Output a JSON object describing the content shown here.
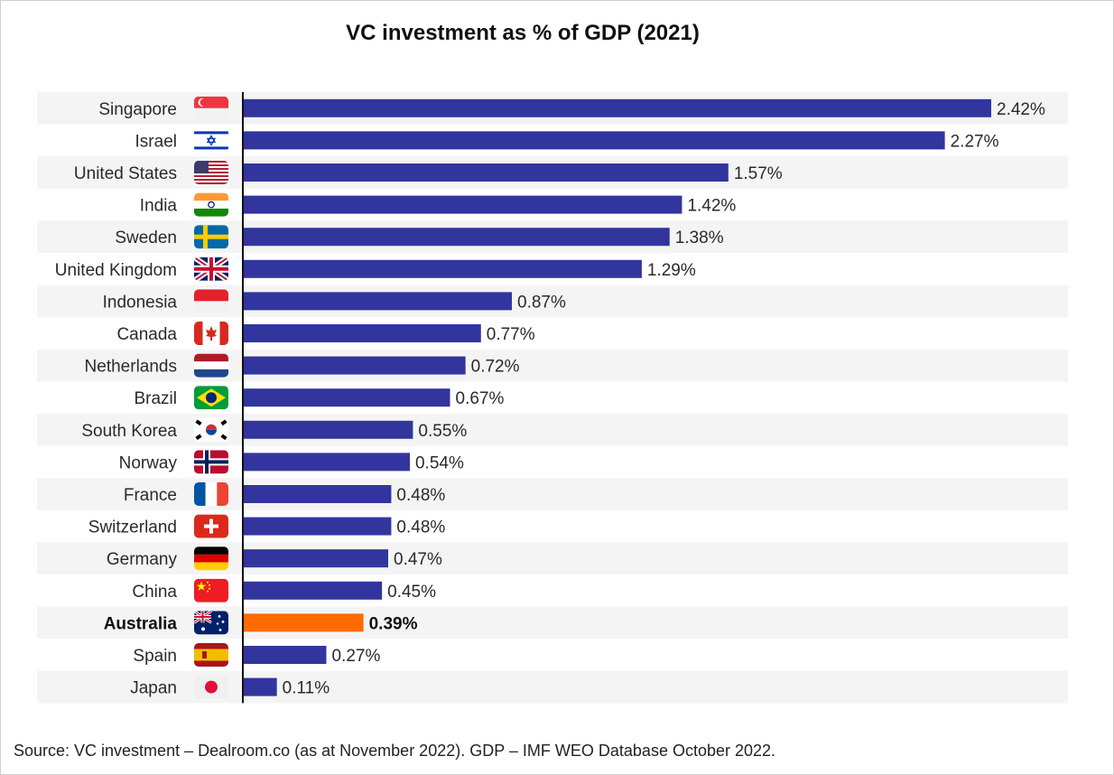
{
  "chart_data": {
    "type": "bar",
    "orientation": "horizontal",
    "title": "VC investment as % of GDP (2021)",
    "categories": [
      "Singapore",
      "Israel",
      "United States",
      "India",
      "Sweden",
      "United Kingdom",
      "Indonesia",
      "Canada",
      "Netherlands",
      "Brazil",
      "South Korea",
      "Norway",
      "France",
      "Switzerland",
      "Germany",
      "China",
      "Australia",
      "Spain",
      "Japan"
    ],
    "values": [
      2.42,
      2.27,
      1.57,
      1.42,
      1.38,
      1.29,
      0.87,
      0.77,
      0.72,
      0.67,
      0.55,
      0.54,
      0.48,
      0.48,
      0.47,
      0.45,
      0.39,
      0.27,
      0.11
    ],
    "value_labels": [
      "2.42%",
      "2.27%",
      "1.57%",
      "1.42%",
      "1.38%",
      "1.29%",
      "0.87%",
      "0.77%",
      "0.72%",
      "0.67%",
      "0.55%",
      "0.54%",
      "0.48%",
      "0.48%",
      "0.47%",
      "0.45%",
      "0.39%",
      "0.27%",
      "0.11%"
    ],
    "flag_icons": [
      "singapore-flag-icon",
      "israel-flag-icon",
      "united-states-flag-icon",
      "india-flag-icon",
      "sweden-flag-icon",
      "united-kingdom-flag-icon",
      "indonesia-flag-icon",
      "canada-flag-icon",
      "netherlands-flag-icon",
      "brazil-flag-icon",
      "south-korea-flag-icon",
      "norway-flag-icon",
      "france-flag-icon",
      "switzerland-flag-icon",
      "germany-flag-icon",
      "china-flag-icon",
      "australia-flag-icon",
      "spain-flag-icon",
      "japan-flag-icon"
    ],
    "highlight": "Australia",
    "xlim": [
      0,
      2.42
    ],
    "grid": false,
    "legend": "none"
  },
  "colors": {
    "bar": "#32359E",
    "highlight_bar": "#FF6B00",
    "row_band": "#F4F4F4",
    "axis": "#111111"
  },
  "source": "Source: VC investment – Dealroom.co (as at November 2022). GDP – IMF WEO Database October 2022."
}
